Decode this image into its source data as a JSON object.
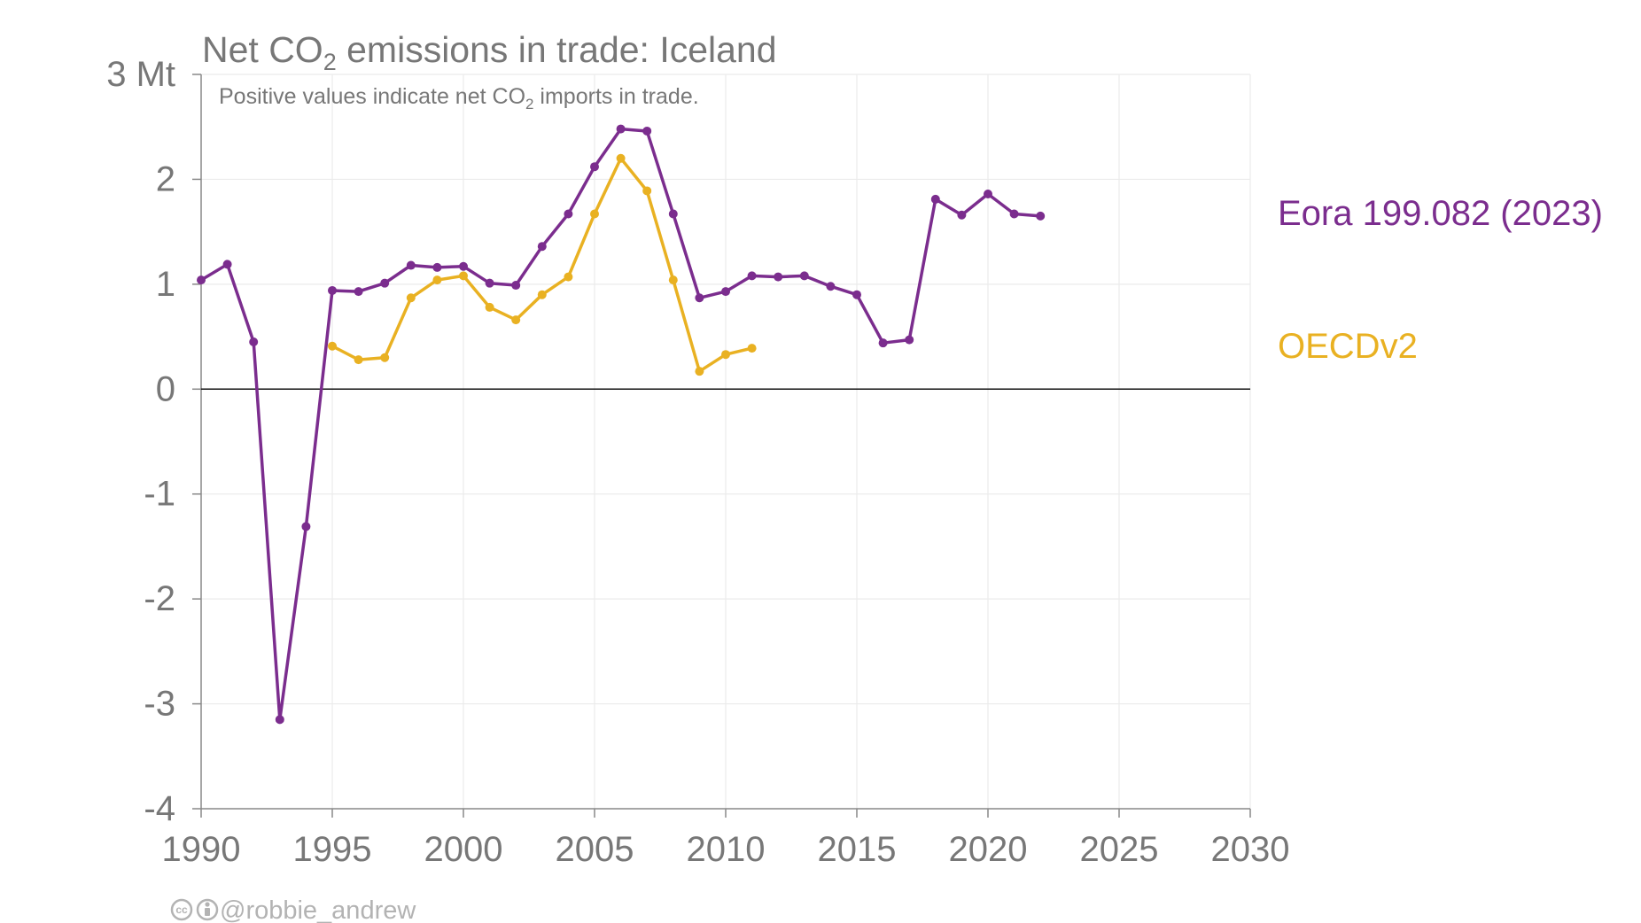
{
  "chart_data": {
    "type": "line",
    "title": {
      "prefix": "Net CO",
      "sub": "2",
      "suffix": " emissions in trade: Iceland"
    },
    "subtitle": {
      "prefix": "Positive values indicate net CO",
      "sub": "2",
      "suffix": " imports in trade."
    },
    "xlim": [
      1990,
      2030
    ],
    "ylim": [
      -4,
      3
    ],
    "x_ticks": [
      1990,
      1995,
      2000,
      2005,
      2010,
      2015,
      2020,
      2025,
      2030
    ],
    "x_tick_labels": [
      "1990",
      "1995",
      "2000",
      "2005",
      "2010",
      "2015",
      "2020",
      "2025",
      "2030"
    ],
    "y_ticks": [
      -4,
      -3,
      -2,
      -1,
      0,
      1,
      2,
      3
    ],
    "y_tick_labels": [
      "-4",
      "-3",
      "-2",
      "-1",
      "0",
      "1",
      "2",
      "3 Mt"
    ],
    "grid": true,
    "zero_line": true,
    "legend": "direct labels at right",
    "series": [
      {
        "name": "Eora 199.082 (2023)",
        "color": "#7b2d8e",
        "x": [
          1990,
          1991,
          1992,
          1993,
          1994,
          1995,
          1996,
          1997,
          1998,
          1999,
          2000,
          2001,
          2002,
          2003,
          2004,
          2005,
          2006,
          2007,
          2008,
          2009,
          2010,
          2011,
          2012,
          2013,
          2014,
          2015,
          2016,
          2017,
          2018,
          2019,
          2020,
          2021,
          2022
        ],
        "y": [
          1.04,
          1.19,
          0.45,
          -3.15,
          -1.31,
          0.94,
          0.93,
          1.01,
          1.18,
          1.16,
          1.17,
          1.01,
          0.99,
          1.36,
          1.67,
          2.12,
          2.48,
          2.46,
          1.67,
          0.87,
          0.93,
          1.08,
          1.07,
          1.08,
          0.98,
          0.9,
          0.44,
          0.47,
          1.81,
          1.66,
          1.86,
          1.67,
          1.65
        ]
      },
      {
        "name": "OECDv2",
        "color": "#e9b122",
        "x": [
          1995,
          1996,
          1997,
          1998,
          1999,
          2000,
          2001,
          2002,
          2003,
          2004,
          2005,
          2006,
          2007,
          2008,
          2009,
          2010,
          2011
        ],
        "y": [
          0.41,
          0.28,
          0.3,
          0.87,
          1.04,
          1.08,
          0.78,
          0.66,
          0.9,
          1.07,
          1.67,
          2.2,
          1.89,
          1.04,
          0.17,
          0.33,
          0.39
        ]
      }
    ]
  },
  "credit": {
    "handle": "@robbie_andrew",
    "icons": [
      "cc-icon",
      "by-icon"
    ],
    "color": "#b3b3b3"
  }
}
